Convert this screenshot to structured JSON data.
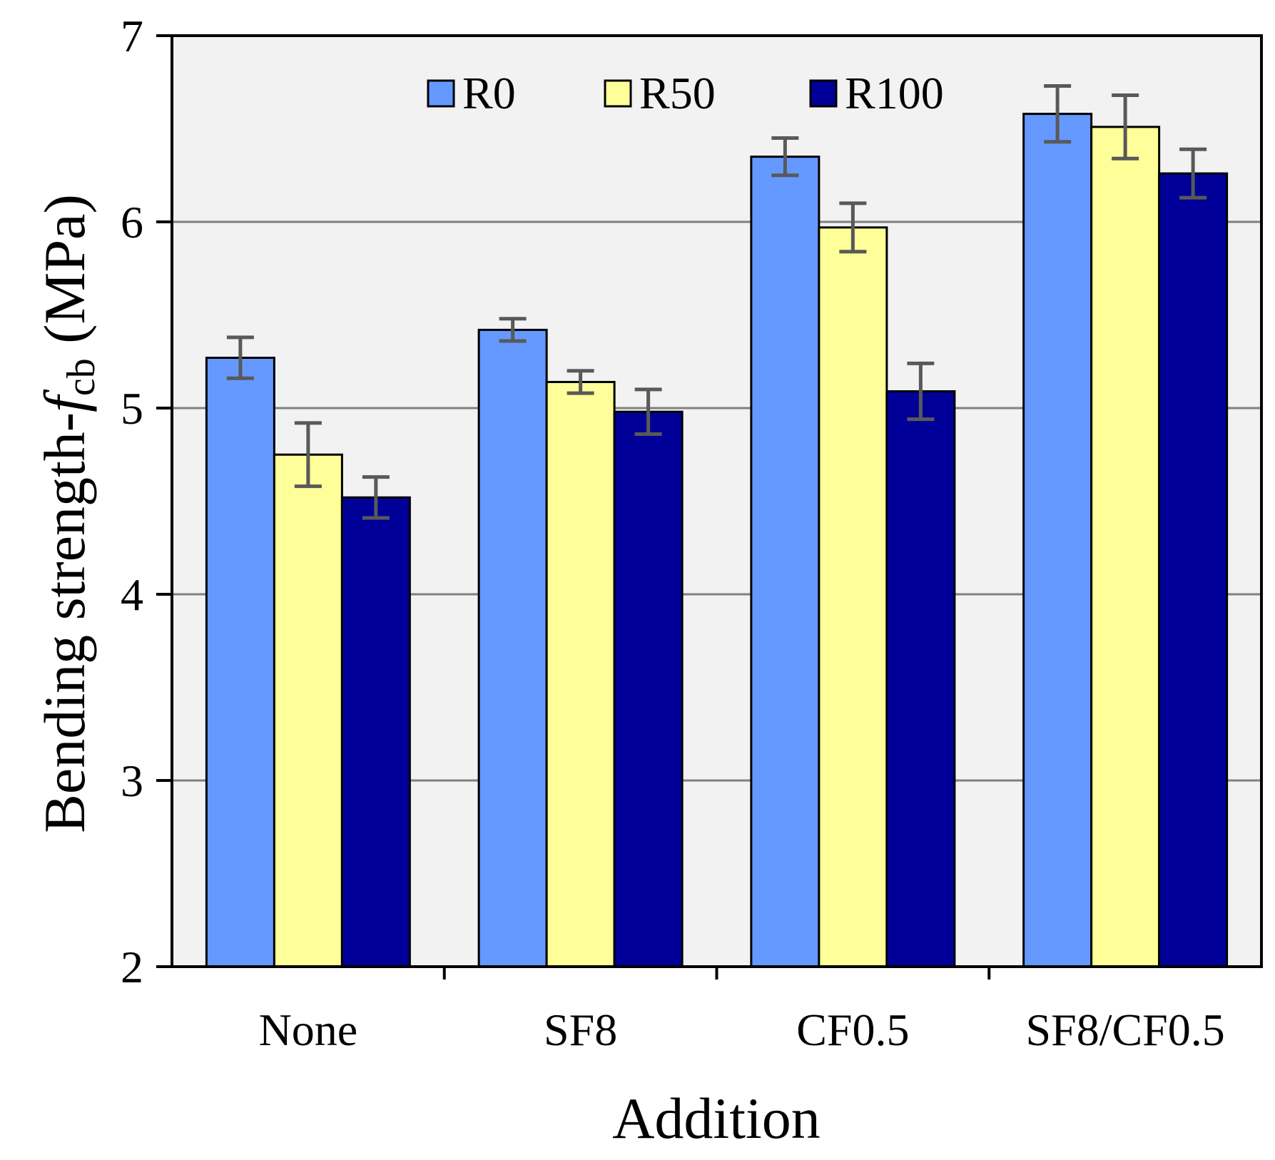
{
  "chart_data": {
    "type": "bar",
    "title": "",
    "xlabel": "Addition",
    "ylabel": {
      "prefix": "Bending strength-",
      "symbol": "f",
      "subscript": "cb",
      "unit": " (MPa)"
    },
    "categories": [
      "None",
      "SF8",
      "CF0.5",
      "SF8/CF0.5"
    ],
    "ylim": [
      2,
      7
    ],
    "yticks": [
      2,
      3,
      4,
      5,
      6,
      7
    ],
    "grid": true,
    "legend_position": "top",
    "series": [
      {
        "name": "R0",
        "color": "#6699ff",
        "values": [
          5.27,
          5.42,
          6.35,
          6.58
        ],
        "errors": [
          0.11,
          0.06,
          0.1,
          0.15
        ]
      },
      {
        "name": "R50",
        "color": "#ffff99",
        "values": [
          4.75,
          5.14,
          5.97,
          6.51
        ],
        "errors": [
          0.17,
          0.06,
          0.13,
          0.17
        ]
      },
      {
        "name": "R100",
        "color": "#000099",
        "values": [
          4.52,
          4.98,
          5.09,
          6.26
        ],
        "errors": [
          0.11,
          0.12,
          0.15,
          0.13
        ]
      }
    ],
    "colors": {
      "plot_background": "#f2f2f2",
      "gridline": "#808080",
      "error_bar": "#595959",
      "axis": "#000000"
    }
  }
}
